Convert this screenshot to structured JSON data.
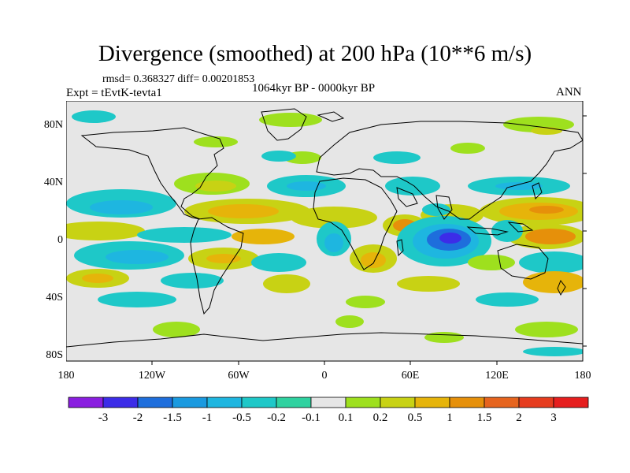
{
  "title": "Divergence (smoothed) at 200 hPa (10**6 m/s)",
  "stats": "rmsd= 0.368327 diff= 0.00201853",
  "experiment": "Expt = tEvtK-tevta1",
  "period": "1064kyr BP - 0000kyr BP",
  "season": "ANN",
  "map": {
    "y_ticks": [
      "80N",
      "40N",
      "0",
      "40S",
      "80S"
    ],
    "x_ticks": [
      "180",
      "120W",
      "60W",
      "0",
      "60E",
      "120E",
      "180"
    ],
    "background_color": "#e6e6e6"
  },
  "colorbar": {
    "labels": [
      "-3",
      "-2",
      "-1.5",
      "-1",
      "-0.5",
      "-0.2",
      "-0.1",
      "0.1",
      "0.2",
      "0.5",
      "1",
      "1.5",
      "2",
      "3"
    ],
    "colors": [
      "#8a1ee0",
      "#3c2ce8",
      "#1e6edc",
      "#1a9ae0",
      "#1eb6e0",
      "#1ec8c8",
      "#2fd2a0",
      "#e6e6e6",
      "#9ee01e",
      "#c8d214",
      "#e6b40a",
      "#e6900a",
      "#e6641e",
      "#e63c1e",
      "#e61e1e"
    ]
  }
}
